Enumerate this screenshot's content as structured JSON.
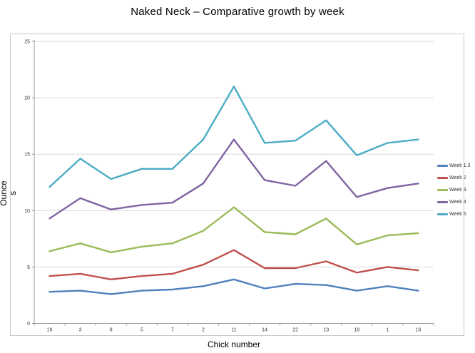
{
  "title": "Naked Neck – Comparative growth by week",
  "chart_data": {
    "type": "line",
    "title": "Naked Neck – Comparative growth by week",
    "xlabel": "Chick number",
    "ylabel": "Ounces",
    "ylabel_lines": [
      "Ounce",
      "s"
    ],
    "categories": [
      "19",
      "3",
      "8",
      "5",
      "7",
      "2",
      "11",
      "14",
      "22",
      "13",
      "18",
      "1",
      "16"
    ],
    "ylim": [
      0,
      25
    ],
    "yticks": [
      0,
      5,
      10,
      15,
      20,
      25
    ],
    "grid": true,
    "legend_position": "right",
    "series": [
      {
        "name": "Week 1.3",
        "color": "#4F81BD",
        "values": [
          2.8,
          2.9,
          2.6,
          2.9,
          3.0,
          3.3,
          3.9,
          3.1,
          3.5,
          3.4,
          2.9,
          3.3,
          2.9
        ]
      },
      {
        "name": "Week 2",
        "color": "#C0504D",
        "values": [
          4.2,
          4.4,
          3.9,
          4.2,
          4.4,
          5.2,
          6.5,
          4.9,
          4.9,
          5.5,
          4.5,
          5.0,
          4.7
        ]
      },
      {
        "name": "Week 3",
        "color": "#9BBB59",
        "values": [
          6.4,
          7.1,
          6.3,
          6.8,
          7.1,
          8.2,
          10.3,
          8.1,
          7.9,
          9.3,
          7.0,
          7.8,
          8.0
        ]
      },
      {
        "name": "Week 4",
        "color": "#8064A2",
        "values": [
          9.3,
          11.1,
          10.1,
          10.5,
          10.7,
          12.4,
          16.3,
          12.7,
          12.2,
          14.4,
          11.2,
          12.0,
          12.4
        ]
      },
      {
        "name": "Week 5",
        "color": "#4BACC6",
        "values": [
          12.1,
          14.6,
          12.8,
          13.7,
          13.7,
          16.3,
          21.0,
          16.0,
          16.2,
          18.0,
          14.9,
          16.0,
          16.3
        ]
      }
    ],
    "colors": {
      "gridline": "#d9d9d9",
      "axis": "#9a9a9a",
      "tick_text": "#333333"
    }
  }
}
